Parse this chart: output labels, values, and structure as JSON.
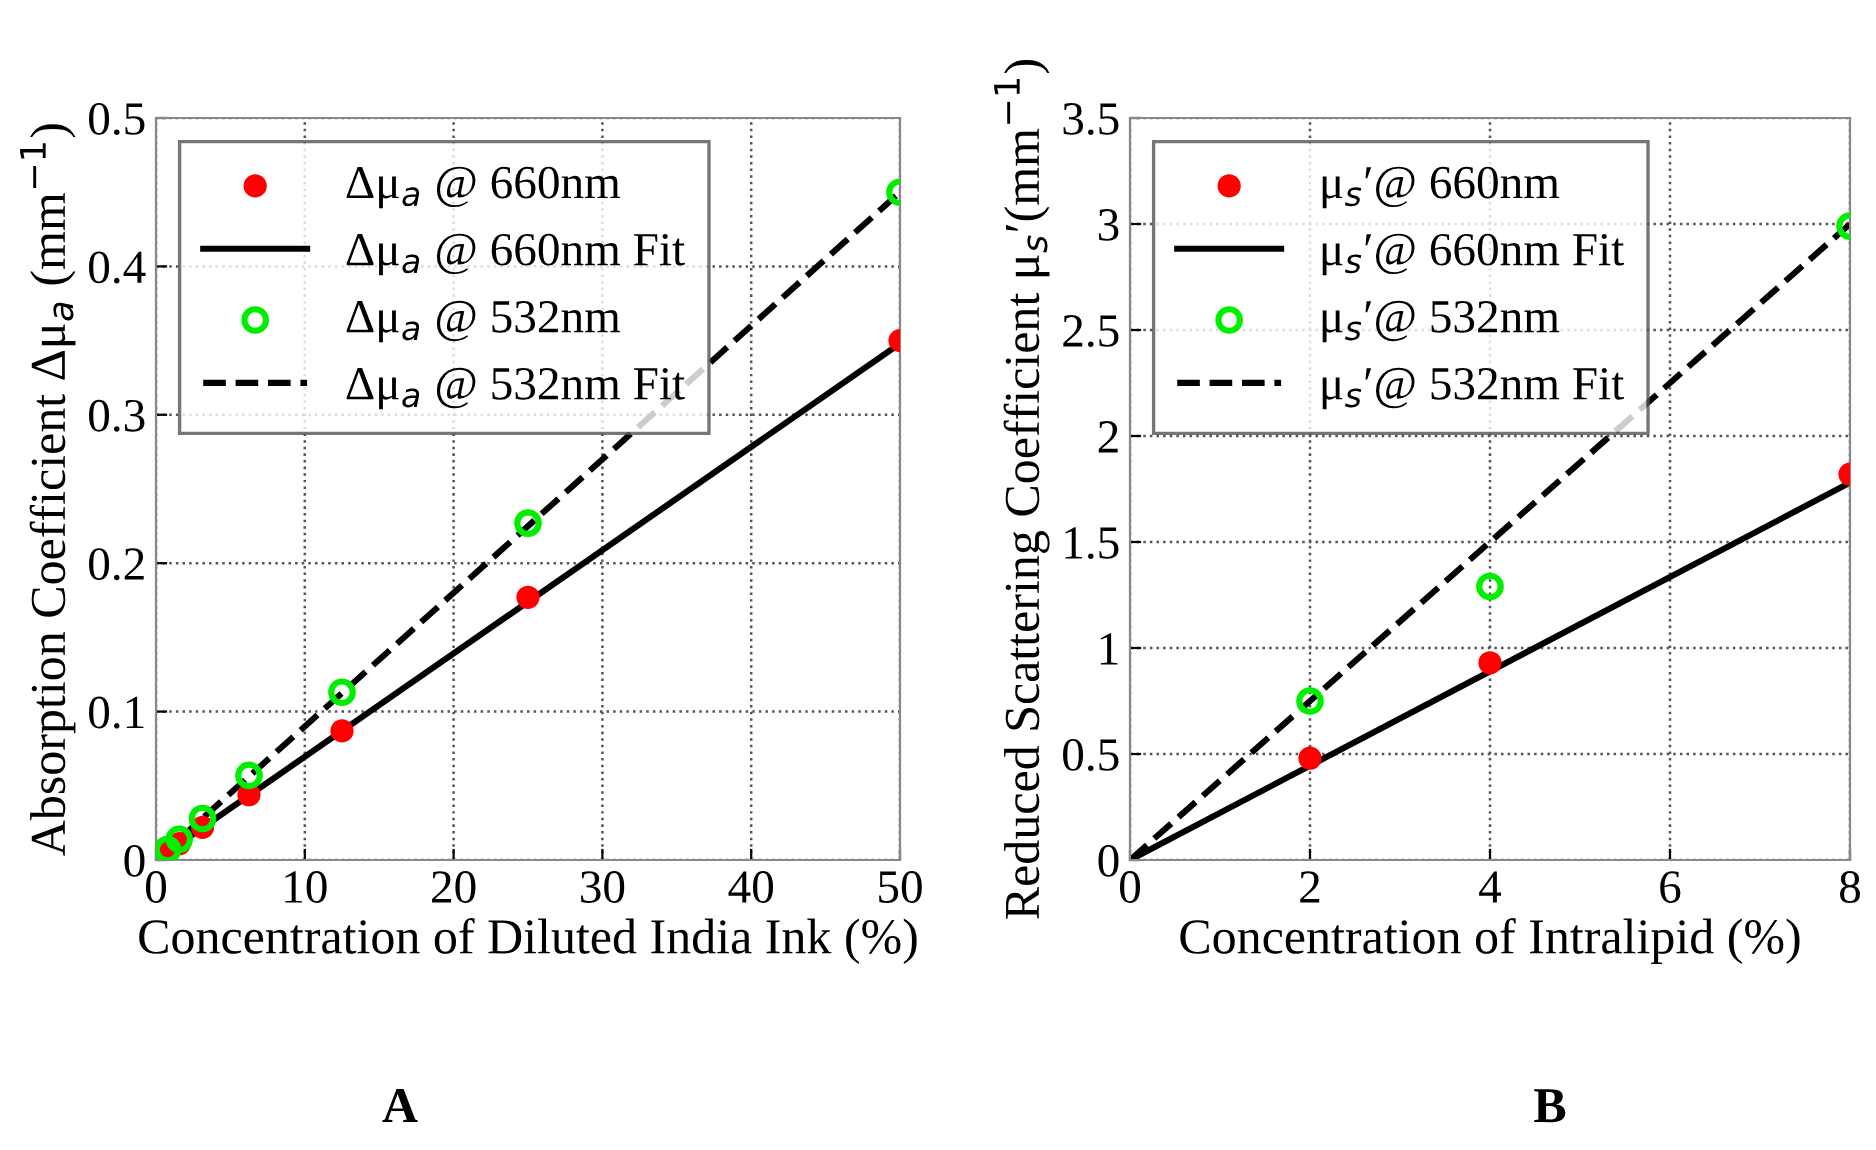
{
  "chart_data": [
    {
      "type": "scatter",
      "xlabel": "Concentration of Diluted India Ink (%)",
      "ylabel": "Absorption Coefficient Δμ$_{a}$ (mm$^{−1}$)",
      "xlim": [
        0,
        50
      ],
      "ylim": [
        0,
        0.5
      ],
      "xticks": [
        0,
        10,
        20,
        30,
        40,
        50
      ],
      "yticks": [
        0,
        0.1,
        0.2,
        0.3,
        0.4,
        0.5
      ],
      "grid": true,
      "legend": "top left",
      "annotations": [
        "A"
      ],
      "series": [
        {
          "name": "Δμ$_{a}$ @ 660nm",
          "color": "#ff0000",
          "marker": "circle",
          "x": [
            0.78,
            1.56,
            3.125,
            6.25,
            12.5,
            25,
            50
          ],
          "values": [
            0.006,
            0.011,
            0.022,
            0.044,
            0.087,
            0.177,
            0.35
          ]
        },
        {
          "name": "Δμ$_{a}$ @ 660nm Fit",
          "type": "line",
          "color": "#000000",
          "line_style": "solid",
          "x": [
            0,
            50
          ],
          "values": [
            0,
            0.348
          ]
        },
        {
          "name": "Δμ$_{a}$ @ 532nm",
          "color": "#00ee00",
          "marker": "circle",
          "x": [
            0.78,
            1.56,
            3.125,
            6.25,
            12.5,
            25,
            50
          ],
          "values": [
            0.007,
            0.014,
            0.028,
            0.057,
            0.113,
            0.227,
            0.45
          ]
        },
        {
          "name": "Δμ$_{a}$ @ 532nm Fit",
          "type": "line",
          "color": "#000000",
          "line_style": "dashed",
          "x": [
            0,
            50
          ],
          "values": [
            0,
            0.45
          ]
        }
      ]
    },
    {
      "type": "scatter",
      "xlabel": "Concentration of Intralipid (%)",
      "ylabel": "Reduced Scattering Coefficient μ$_{s}$′(mm$^{−1}$)",
      "xlim": [
        0,
        8
      ],
      "ylim": [
        0,
        3.5
      ],
      "xticks": [
        0,
        2,
        4,
        6,
        8
      ],
      "yticks": [
        0,
        0.5,
        1,
        1.5,
        2,
        2.5,
        3,
        3.5
      ],
      "grid": true,
      "legend": "top left",
      "annotations": [
        "B"
      ],
      "series": [
        {
          "name": "μ$_{s}$′@ 660nm",
          "color": "#ff0000",
          "marker": "circle",
          "x": [
            2,
            4,
            8
          ],
          "values": [
            0.48,
            0.93,
            1.82
          ]
        },
        {
          "name": "μ$_{s}$′@ 660nm Fit",
          "type": "line",
          "color": "#000000",
          "line_style": "solid",
          "x": [
            0,
            8
          ],
          "values": [
            0,
            1.78
          ]
        },
        {
          "name": "μ$_{s}$′@ 532nm",
          "color": "#00ee00",
          "marker": "circle",
          "x": [
            2,
            4,
            8
          ],
          "values": [
            0.75,
            1.29,
            2.99
          ]
        },
        {
          "name": "μ$_{s}$′@ 532nm Fit",
          "type": "line",
          "color": "#000000",
          "line_style": "dashed",
          "x": [
            0,
            8
          ],
          "values": [
            0,
            3.0
          ]
        }
      ]
    }
  ]
}
